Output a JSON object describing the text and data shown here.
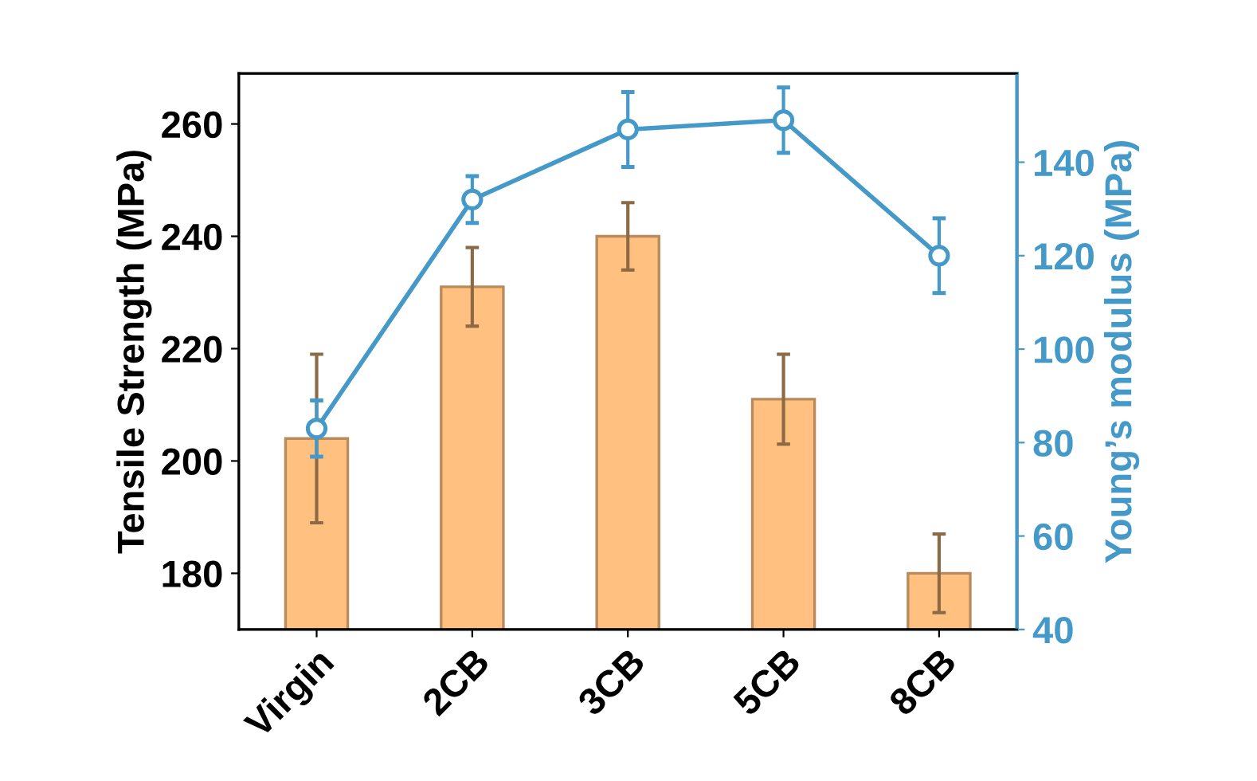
{
  "chart_data": {
    "type": "bar",
    "ylabel": "Tensile Strength (MPa)",
    "y2label": "Young’s modulus (MPa)",
    "categories": [
      "Virgin",
      "2CB",
      "3CB",
      "5CB",
      "8CB"
    ],
    "series": [
      {
        "color": "#ffc080",
        "values": [
          204,
          231,
          240,
          211,
          180
        ],
        "errors": [
          15,
          7,
          6,
          8,
          7
        ]
      },
      {
        "type": "line",
        "axis": "y2",
        "color": "#4499c9",
        "marker": "circle",
        "line_style": "solid",
        "values": [
          83,
          132,
          147,
          149,
          120
        ],
        "errors": [
          6,
          5,
          8,
          7,
          8
        ]
      }
    ],
    "ylim": [
      170,
      269
    ],
    "yticks": [
      180,
      200,
      220,
      240,
      260
    ],
    "y2lim": [
      40,
      159
    ],
    "y2ticks": [
      40,
      60,
      80,
      100,
      120,
      140
    ],
    "grid": false
  }
}
